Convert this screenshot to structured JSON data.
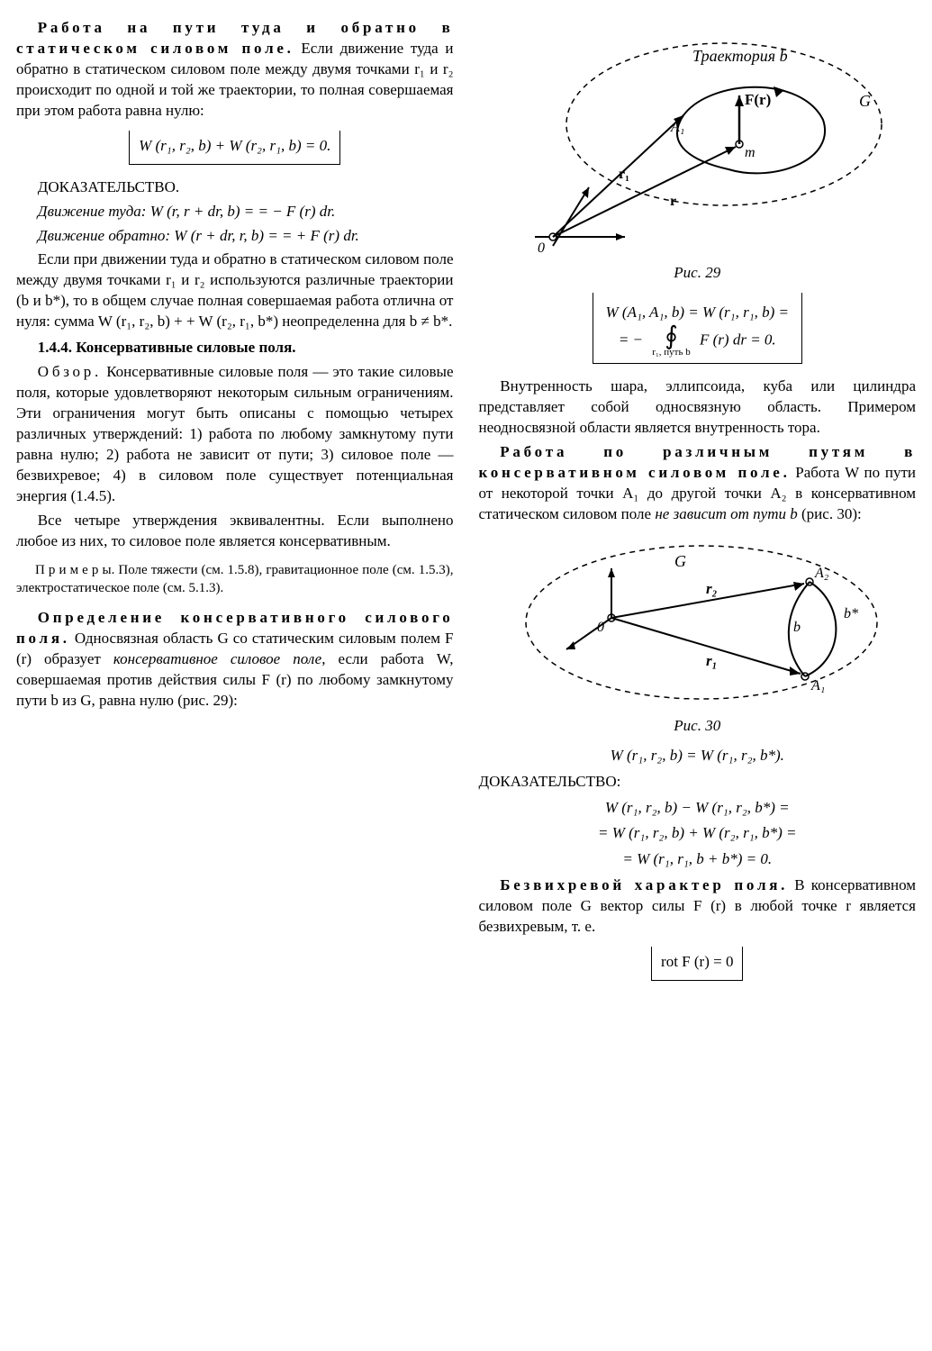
{
  "col1": {
    "p1_lead": "Работа на пути туда и обратно в статическом силовом поле.",
    "p1_body": " Если движение туда и обратно в статическом силовом поле между двумя точками r₁ и r₂ происходит по одной и той же траектории, то полная совершаемая при этом работа равна нулю:",
    "eq1": "W (r₁, r₂, b) + W (r₂, r₁, b) = 0.",
    "proof_head": "ДОКАЗАТЕЛЬСТВО.",
    "proof_l1": "Движение туда:  W (r,  r + dr,  b) = = − F (r) dr.",
    "proof_l2": "Движение обратно: W (r + dr, r, b) = = + F (r) dr.",
    "p2": "Если при движении туда и обратно в статическом силовом поле между двумя точками r₁ и r₂ используются различные траектории (b и b*), то в общем случае полная совершаемая работа отлична от нуля: сумма W (r₁, r₂, b) + + W (r₂, r₁, b*) неопределенна для b ≠ b*.",
    "sec144": "1.4.4. Консервативные силовые поля.",
    "overview_lead": "Обзор.",
    "overview_body": " Консервативные силовые поля — это такие силовые поля, которые удовлетворяют некоторым сильным ограничениям. Эти ограничения могут быть описаны с помощью четырех различных утверждений: 1) работа по любому замкнутому пути равна нулю; 2) работа не зависит от пути; 3) силовое поле — безвихревое; 4) в силовом поле существует потенциальная энергия (1.4.5).",
    "p3": "Все четыре утверждения эквивалентны. Если выполнено любое из них, то силовое поле является консервативным.",
    "examples": "П р и м е р ы.  Поле тяжести (см. 1.5.8), гравитационное поле (см. 1.5.3), электростатическое поле (см. 5.1.3).",
    "def_lead": "Определение консервативного силового поля.",
    "def_body": " Односвязная область G со статическим силовым полем F (r) образует консервативное силовое поле, если работа W, совершаемая против действия силы F (r) по любому замкнутому пути b из G, равна нулю (рис. 29):"
  },
  "fig29": {
    "caption": "Рис. 29",
    "label_trajectory": "Траектория b",
    "label_G": "G",
    "label_F": "F(r)",
    "label_A1": "A₁",
    "label_m": "m",
    "label_r1": "r₁",
    "label_r": "r",
    "label_O": "0",
    "stroke": "#000000",
    "dash": "6,5"
  },
  "col2": {
    "eq2_line1": "W (A₁, A₁, b) = W (r₁, r₁, b) =",
    "eq2_int_sub": "r₁, путь b",
    "eq2_line2a": "= −",
    "eq2_line2b": "F (r) dr = 0.",
    "p4": "Внутренность шара, эллипсоида, куба или цилиндра представляет собой односвязную область. Примером неодносвязной области является внутренность тора.",
    "paths_lead": "Работа по различным путям в консервативном силовом поле.",
    "paths_body": " Работа W по пути от некоторой точки A₁ до другой точки A₂ в консервативном статическом силовом поле не зависит от пути b (рис. 30):",
    "eq3": "W (r₁, r₂, b) = W (r₁, r₂, b*).",
    "proof2_head": "ДОКАЗАТЕЛЬСТВО:",
    "proof2_l1": "W (r₁, r₂, b) − W (r₁, r₂, b*) =",
    "proof2_l2": "= W (r₁, r₂, b) + W (r₂, r₁, b*) =",
    "proof2_l3": "= W (r₁, r₁, b + b*) = 0.",
    "irrot_lead": "Безвихревой характер поля.",
    "irrot_body": " В консервативном силовом поле G вектор силы F (r) в любой точке r является безвихревым, т. е.",
    "eq4": "rot F (r) = 0"
  },
  "fig30": {
    "caption": "Рис. 30",
    "label_G": "G",
    "label_r1": "r₁",
    "label_r2": "r₂",
    "label_A1": "A₁",
    "label_A2": "A₂",
    "label_b": "b",
    "label_bstar": "b*",
    "label_O": "0",
    "stroke": "#000000",
    "dash": "6,5"
  }
}
